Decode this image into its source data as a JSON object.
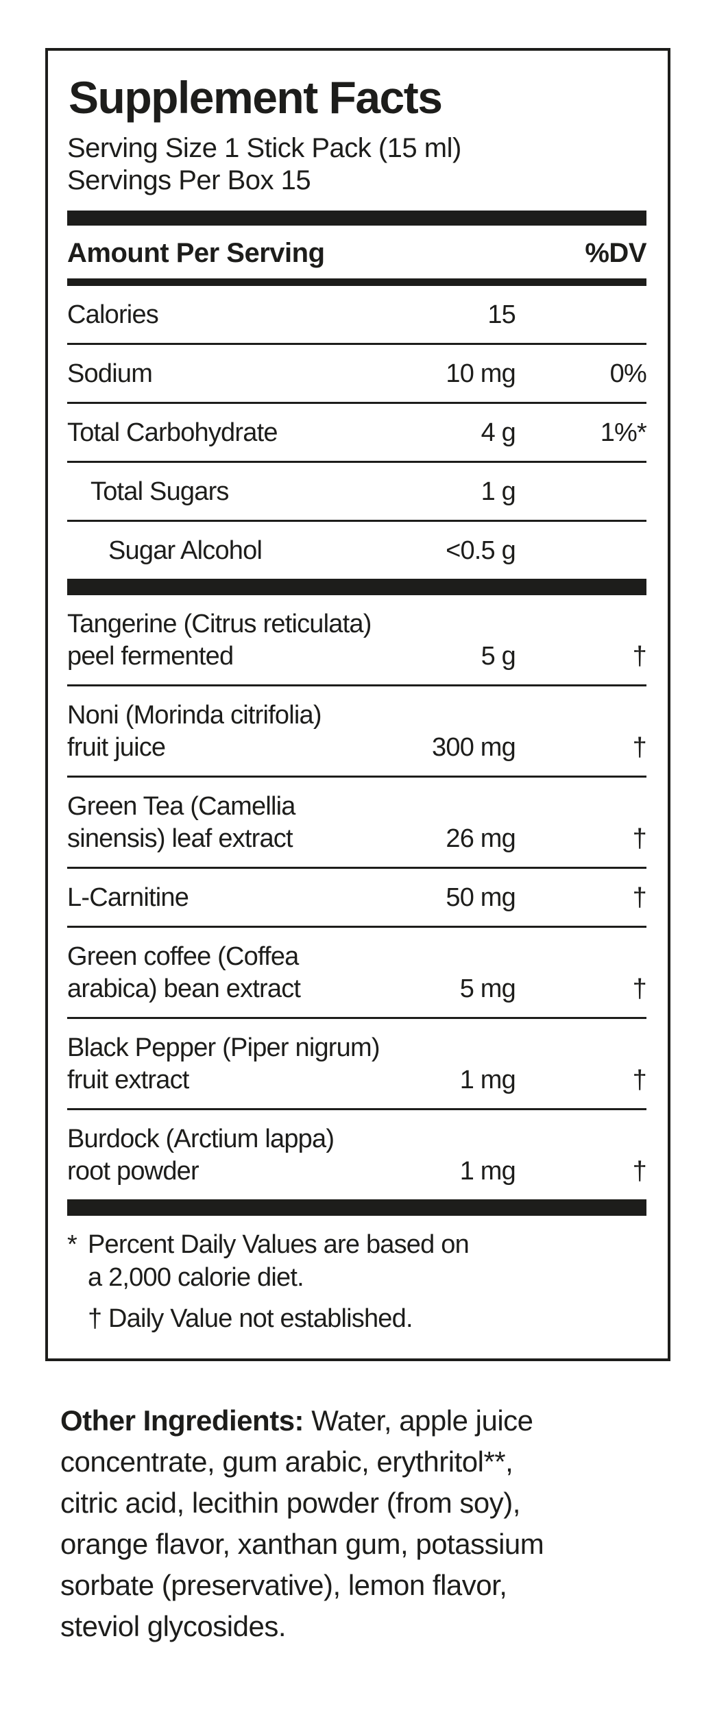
{
  "colors": {
    "text": "#1d1d1b",
    "background": "#ffffff"
  },
  "panel": {
    "title": "Supplement Facts",
    "serving_size": "Serving Size 1 Stick Pack (15 ml)",
    "servings_per_box": "Servings Per Box 15",
    "header": {
      "amount_label": "Amount Per Serving",
      "dv_label": "%DV"
    },
    "rows": [
      {
        "name": "Calories",
        "amount": "15",
        "dv": "",
        "indent": 0,
        "section_break": false
      },
      {
        "name": "Sodium",
        "amount": "10 mg",
        "dv": "0%",
        "indent": 0,
        "section_break": false
      },
      {
        "name": "Total Carbohydrate",
        "amount": "4 g",
        "dv": "1%*",
        "indent": 0,
        "section_break": false
      },
      {
        "name": "Total Sugars",
        "amount": "1 g",
        "dv": "",
        "indent": 1,
        "section_break": false
      },
      {
        "name": "Sugar Alcohol",
        "amount": "<0.5 g",
        "dv": "",
        "indent": 2,
        "section_break": true
      },
      {
        "name": "Tangerine (Citrus reticulata)\npeel fermented",
        "amount": "5 g",
        "dv": "†",
        "indent": 0,
        "section_break": false
      },
      {
        "name": "Noni (Morinda citrifolia)\nfruit juice",
        "amount": "300 mg",
        "dv": "†",
        "indent": 0,
        "section_break": false
      },
      {
        "name": "Green Tea (Camellia\nsinensis) leaf extract",
        "amount": "26 mg",
        "dv": "†",
        "indent": 0,
        "section_break": false
      },
      {
        "name": "L-Carnitine",
        "amount": "50 mg",
        "dv": "†",
        "indent": 0,
        "section_break": false
      },
      {
        "name": "Green coffee (Coffea\narabica) bean extract",
        "amount": "5 mg",
        "dv": "†",
        "indent": 0,
        "section_break": false
      },
      {
        "name": "Black Pepper (Piper nigrum)\nfruit extract",
        "amount": "1 mg",
        "dv": "†",
        "indent": 0,
        "section_break": false
      },
      {
        "name": "Burdock (Arctium lappa)\nroot powder",
        "amount": "1 mg",
        "dv": "†",
        "indent": 0,
        "section_break": true
      }
    ],
    "footnotes": {
      "star_symbol": "*",
      "star_line1": "Percent Daily Values are based on",
      "star_line2": "a 2,000 calorie diet.",
      "dagger_symbol": "†",
      "dagger_text": "Daily Value not established."
    }
  },
  "other_ingredients": {
    "lead": "Other Ingredients:",
    "line1_rest": " Water, apple juice",
    "rest_lines": "concentrate, gum arabic, erythritol**,\ncitric acid, lecithin powder (from soy),\norange flavor, xanthan gum, potassium\nsorbate (preservative), lemon flavor,\nsteviol glycosides."
  }
}
